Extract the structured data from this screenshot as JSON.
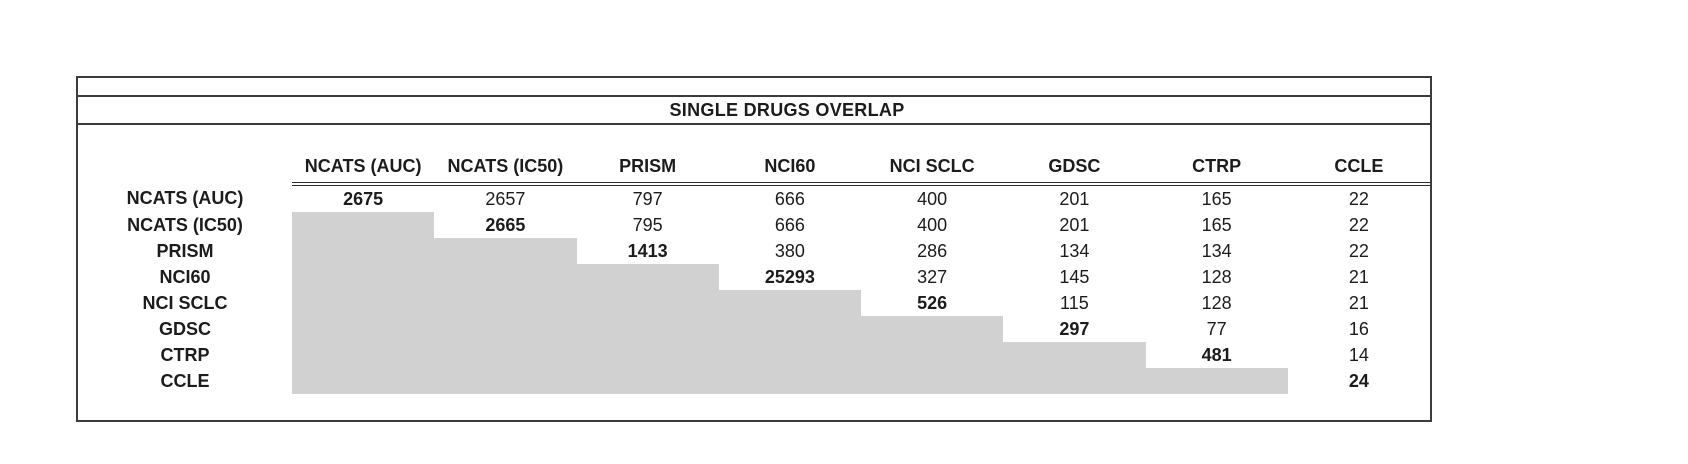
{
  "table": {
    "title": "SINGLE DRUGS OVERLAP",
    "columns": [
      "NCATS (AUC)",
      "NCATS (IC50)",
      "PRISM",
      "NCI60",
      "NCI SCLC",
      "GDSC",
      "CTRP",
      "CCLE"
    ],
    "rows": [
      {
        "label": "NCATS (AUC)",
        "values": [
          "2675",
          "2657",
          "797",
          "666",
          "400",
          "201",
          "165",
          "22"
        ]
      },
      {
        "label": "NCATS (IC50)",
        "values": [
          "",
          "2665",
          "795",
          "666",
          "400",
          "201",
          "165",
          "22"
        ]
      },
      {
        "label": "PRISM",
        "values": [
          "",
          "",
          "1413",
          "380",
          "286",
          "134",
          "134",
          "22"
        ]
      },
      {
        "label": "NCI60",
        "values": [
          "",
          "",
          "",
          "25293",
          "327",
          "145",
          "128",
          "21"
        ]
      },
      {
        "label": "NCI SCLC",
        "values": [
          "",
          "",
          "",
          "",
          "526",
          "115",
          "128",
          "21"
        ]
      },
      {
        "label": "GDSC",
        "values": [
          "",
          "",
          "",
          "",
          "",
          "297",
          "77",
          "16"
        ]
      },
      {
        "label": "CTRP",
        "values": [
          "",
          "",
          "",
          "",
          "",
          "",
          "481",
          "14"
        ]
      },
      {
        "label": "CCLE",
        "values": [
          "",
          "",
          "",
          "",
          "",
          "",
          "",
          "24"
        ]
      }
    ],
    "style_notes": {
      "shaded_cell_color": "#d2d1d1",
      "border_color": "#3b3b3b",
      "text_color": "#1c1c1c",
      "diagonal": "bold",
      "lower_triangle": "gray-masked"
    }
  },
  "chart_data": {
    "type": "table",
    "title": "SINGLE DRUGS OVERLAP",
    "columns": [
      "NCATS (AUC)",
      "NCATS (IC50)",
      "PRISM",
      "NCI60",
      "NCI SCLC",
      "GDSC",
      "CTRP",
      "CCLE"
    ],
    "row_labels": [
      "NCATS (AUC)",
      "NCATS (IC50)",
      "PRISM",
      "NCI60",
      "NCI SCLC",
      "GDSC",
      "CTRP",
      "CCLE"
    ],
    "matrix": [
      [
        2675,
        2657,
        797,
        666,
        400,
        201,
        165,
        22
      ],
      [
        null,
        2665,
        795,
        666,
        400,
        201,
        165,
        22
      ],
      [
        null,
        null,
        1413,
        380,
        286,
        134,
        134,
        22
      ],
      [
        null,
        null,
        null,
        25293,
        327,
        145,
        128,
        21
      ],
      [
        null,
        null,
        null,
        null,
        526,
        115,
        128,
        21
      ],
      [
        null,
        null,
        null,
        null,
        null,
        297,
        77,
        16
      ],
      [
        null,
        null,
        null,
        null,
        null,
        null,
        481,
        14
      ],
      [
        null,
        null,
        null,
        null,
        null,
        null,
        null,
        24
      ]
    ],
    "layout_hints": {
      "diagonal_values_bold": true,
      "lower_triangle_shaded_gray": true,
      "header_rule": "double",
      "upper_triangle_only": true
    }
  }
}
